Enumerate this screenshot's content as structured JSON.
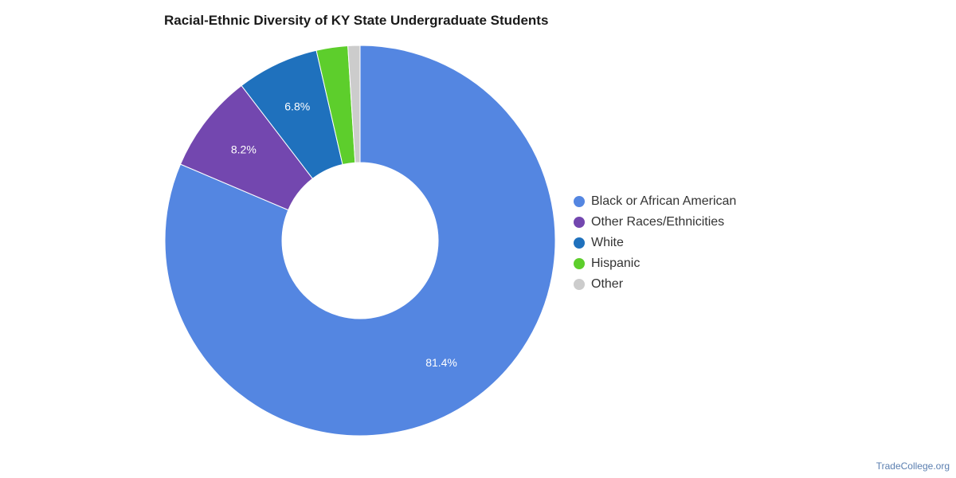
{
  "title": "Racial-Ethnic Diversity of KY State Undergraduate Students",
  "source_text": "TradeCollege.org",
  "chart_data": {
    "type": "pie",
    "variant": "donut",
    "title": "Racial-Ethnic Diversity of KY State Undergraduate Students",
    "legend_placement": "right",
    "slices": [
      {
        "label": "Black or African American",
        "value": 81.4,
        "value_label": "81.4%",
        "color": "#5486e1"
      },
      {
        "label": "Other Races/Ethnicities",
        "value": 8.2,
        "value_label": "8.2%",
        "color": "#7347af"
      },
      {
        "label": "White",
        "value": 6.8,
        "value_label": "6.8%",
        "color": "#1f71bd"
      },
      {
        "label": "Hispanic",
        "value": 2.6,
        "value_label": "",
        "color": "#5dce2c"
      },
      {
        "label": "Other",
        "value": 1.0,
        "value_label": "",
        "color": "#cccccc"
      }
    ]
  }
}
